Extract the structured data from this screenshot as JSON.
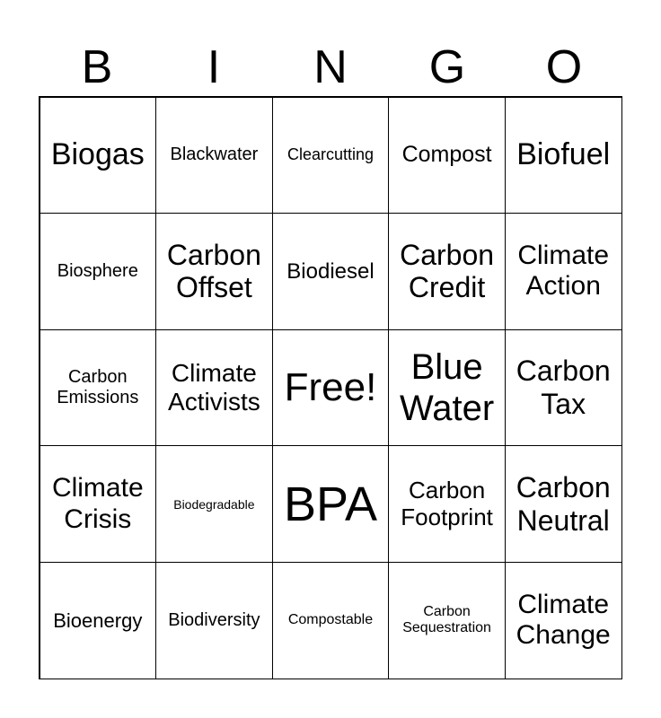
{
  "header": [
    "B",
    "I",
    "N",
    "G",
    "O"
  ],
  "cells": [
    [
      "Biogas",
      "Blackwater",
      "Clearcutting",
      "Compost",
      "Biofuel"
    ],
    [
      "Biosphere",
      "Carbon Offset",
      "Biodiesel",
      "Carbon Credit",
      "Climate Action"
    ],
    [
      "Carbon Emissions",
      "Climate Activists",
      "Free!",
      "Blue Water",
      "Carbon Tax"
    ],
    [
      "Climate Crisis",
      "Biodegradable",
      "BPA",
      "Carbon Footprint",
      "Carbon Neutral"
    ],
    [
      "Bioenergy",
      "Biodiversity",
      "Compostable",
      "Carbon Sequestration",
      "Climate Change"
    ]
  ]
}
